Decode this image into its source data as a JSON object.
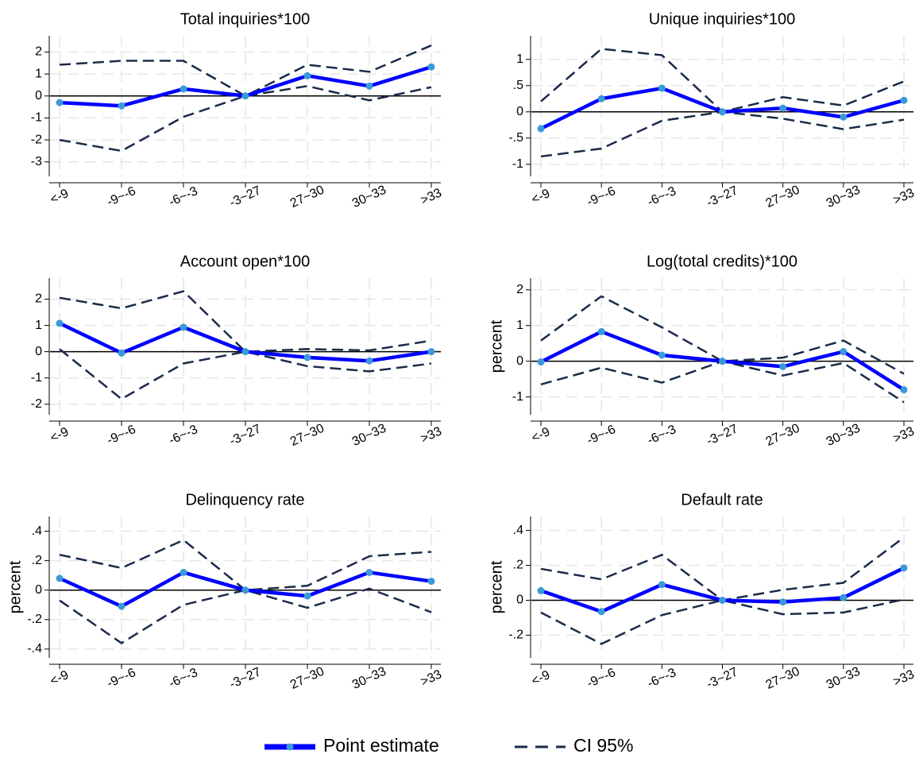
{
  "chart_data": [
    {
      "type": "line",
      "title": "Total inquiries*100",
      "categories": [
        "<-9",
        "-9~-6",
        "-6~-3",
        "-3~27",
        "27~30",
        "30~33",
        ">33"
      ],
      "series": [
        {
          "name": "Point estimate",
          "color": "#0000ff",
          "values": [
            -0.3,
            -0.45,
            0.32,
            0,
            0.92,
            0.45,
            1.32
          ]
        },
        {
          "name": "CI 95%",
          "color": "#1a2b4a",
          "upper": [
            1.42,
            1.6,
            1.6,
            0,
            1.42,
            1.1,
            2.3
          ],
          "lower": [
            -2,
            -2.5,
            -0.95,
            0,
            0.45,
            -0.2,
            0.4
          ]
        }
      ],
      "ylim": [
        -3.66,
        2.74
      ],
      "yticks": [
        -3,
        -2,
        -1,
        0,
        1,
        2
      ],
      "grid": true,
      "zero_line": true
    },
    {
      "type": "line",
      "title": "Unique inquiries*100",
      "categories": [
        "<-9",
        "-9~-6",
        "-6~-3",
        "-3~27",
        "27~30",
        "30~33",
        ">33"
      ],
      "series": [
        {
          "name": "Point estimate",
          "color": "#0000ff",
          "values": [
            -0.32,
            0.25,
            0.45,
            0,
            0.07,
            -0.1,
            0.22
          ]
        },
        {
          "name": "CI 95%",
          "color": "#1a2b4a",
          "upper": [
            0.2,
            1.2,
            1.08,
            0,
            0.28,
            0.12,
            0.58
          ],
          "lower": [
            -0.85,
            -0.7,
            -0.17,
            0,
            -0.13,
            -0.33,
            -0.15
          ]
        }
      ],
      "ylim": [
        -1.23,
        1.45
      ],
      "yticks": [
        -1,
        {
          "value": -0.5,
          "label": "-.5"
        },
        0,
        {
          "value": 0.5,
          "label": ".5"
        },
        1
      ],
      "grid": true,
      "zero_line": true
    },
    {
      "type": "line",
      "title": "Account open*100",
      "categories": [
        "<-9",
        "-9~-6",
        "-6~-3",
        "-3~27",
        "27~30",
        "30~33",
        ">33"
      ],
      "series": [
        {
          "name": "Point estimate",
          "color": "#0000ff",
          "values": [
            1.08,
            -0.05,
            0.93,
            0,
            -0.22,
            -0.35,
            0
          ]
        },
        {
          "name": "CI 95%",
          "color": "#1a2b4a",
          "upper": [
            2.05,
            1.65,
            2.3,
            0,
            0.1,
            0.05,
            0.42
          ],
          "lower": [
            0.1,
            -1.8,
            -0.45,
            0,
            -0.55,
            -0.75,
            -0.45
          ]
        }
      ],
      "ylim": [
        -2.4,
        2.8
      ],
      "yticks": [
        -2,
        -1,
        0,
        1,
        2
      ],
      "grid": true,
      "zero_line": true
    },
    {
      "type": "line",
      "title": "Log(total credits)*100",
      "y_label": "percent",
      "categories": [
        "<-9",
        "-9~-6",
        "-6~-3",
        "-3~27",
        "27~30",
        "30~33",
        ">33"
      ],
      "series": [
        {
          "name": "Point estimate",
          "color": "#0000ff",
          "values": [
            -0.02,
            0.83,
            0.17,
            0,
            -0.15,
            0.27,
            -0.8
          ]
        },
        {
          "name": "CI 95%",
          "color": "#1a2b4a",
          "upper": [
            0.58,
            1.82,
            0.95,
            0,
            0.1,
            0.58,
            -0.35
          ],
          "lower": [
            -0.65,
            -0.18,
            -0.6,
            0,
            -0.4,
            -0.05,
            -1.15
          ]
        }
      ],
      "ylim": [
        -1.5,
        2.33
      ],
      "yticks": [
        -1,
        0,
        1,
        2
      ],
      "grid": true,
      "zero_line": true
    },
    {
      "type": "line",
      "title": "Delinquency rate",
      "y_label": "percent",
      "categories": [
        "<-9",
        "-9~-6",
        "-6~-3",
        "-3~27",
        "27~30",
        "30~33",
        ">33"
      ],
      "series": [
        {
          "name": "Point estimate",
          "color": "#0000ff",
          "values": [
            0.08,
            -0.11,
            0.12,
            0,
            -0.04,
            0.12,
            0.06
          ]
        },
        {
          "name": "CI 95%",
          "color": "#1a2b4a",
          "upper": [
            0.24,
            0.15,
            0.34,
            0,
            0.03,
            0.23,
            0.26
          ],
          "lower": [
            -0.07,
            -0.36,
            -0.1,
            0,
            -0.12,
            0.01,
            -0.15
          ]
        }
      ],
      "ylim": [
        -0.46,
        0.5
      ],
      "yticks": [
        {
          "value": -0.4,
          "label": "-.4"
        },
        {
          "value": -0.2,
          "label": "-.2"
        },
        0,
        {
          "value": 0.2,
          "label": ".2"
        },
        {
          "value": 0.4,
          "label": ".4"
        }
      ],
      "grid": true,
      "zero_line": true
    },
    {
      "type": "line",
      "title": "Default rate",
      "y_label": "percent",
      "categories": [
        "<-9",
        "-9~-6",
        "-6~-3",
        "-3~27",
        "27~30",
        "30~33",
        ">33"
      ],
      "series": [
        {
          "name": "Point estimate",
          "color": "#0000ff",
          "values": [
            0.055,
            -0.065,
            0.09,
            0,
            -0.01,
            0.015,
            0.185
          ]
        },
        {
          "name": "CI 95%",
          "color": "#1a2b4a",
          "upper": [
            0.18,
            0.12,
            0.26,
            0,
            0.06,
            0.1,
            0.36
          ],
          "lower": [
            -0.07,
            -0.25,
            -0.085,
            0,
            -0.08,
            -0.07,
            0.005
          ]
        }
      ],
      "ylim": [
        -0.33,
        0.48
      ],
      "yticks": [
        {
          "value": -0.2,
          "label": "-.2"
        },
        0,
        {
          "value": 0.2,
          "label": ".2"
        },
        {
          "value": 0.4,
          "label": ".4"
        }
      ],
      "grid": true,
      "zero_line": true
    }
  ]
}
